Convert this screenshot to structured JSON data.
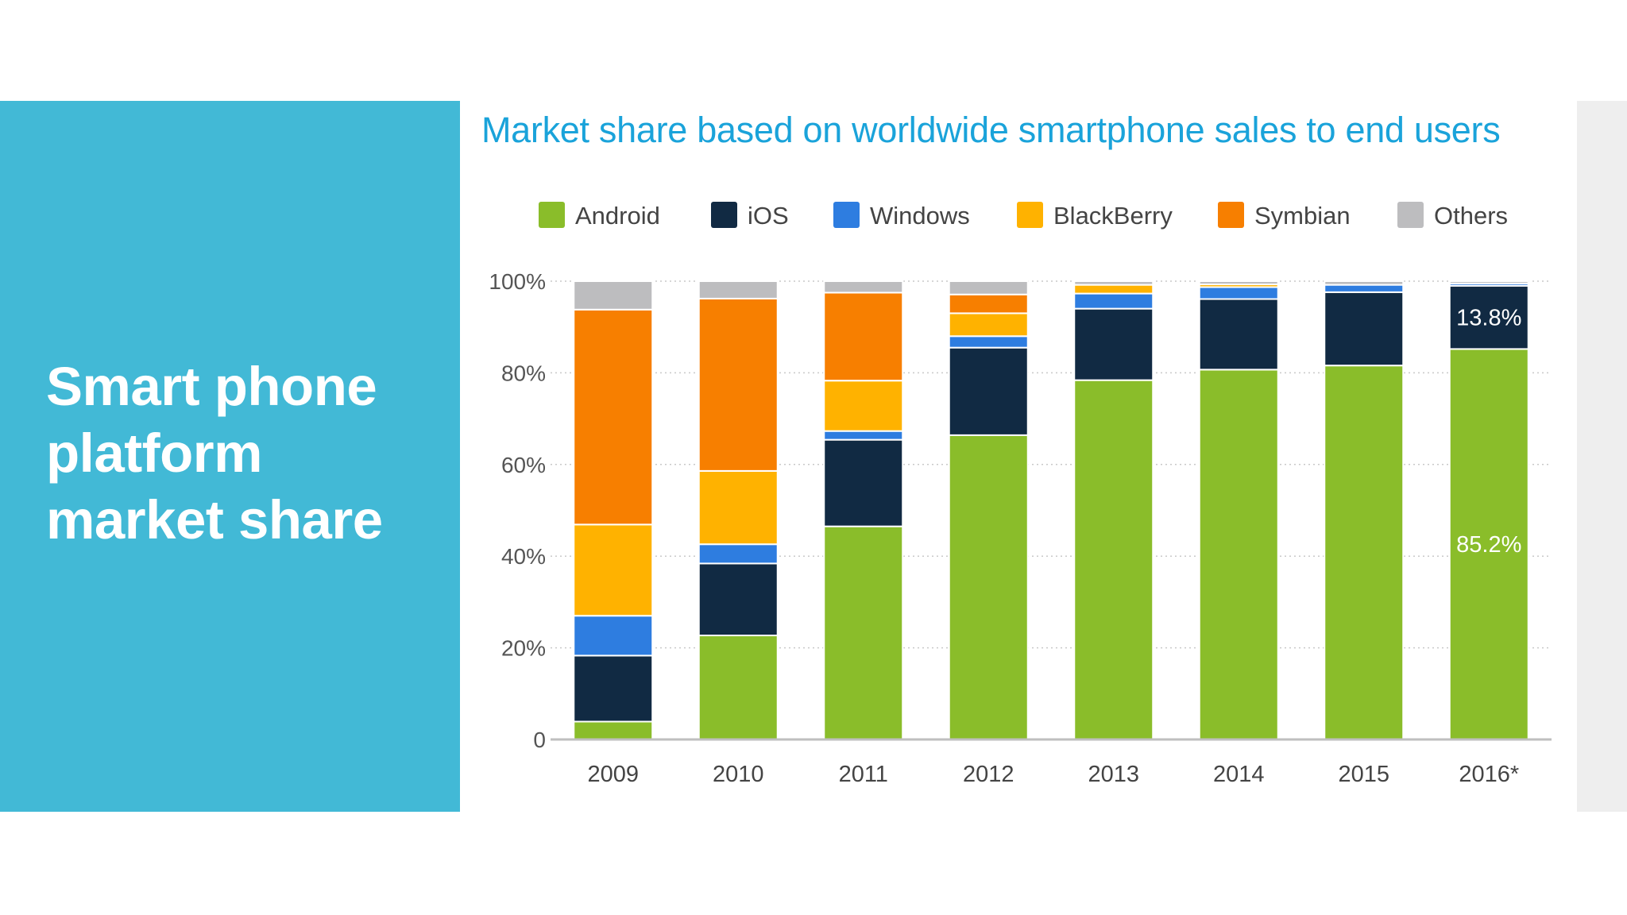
{
  "slide": {
    "title": "Smart phone platform market share"
  },
  "chart_data": {
    "type": "bar",
    "stacked": true,
    "title": "Market share based on worldwide smartphone sales to end users",
    "categories": [
      "2009",
      "2010",
      "2011",
      "2012",
      "2013",
      "2014",
      "2015",
      "2016*"
    ],
    "ylim": [
      0,
      100
    ],
    "yticks": [
      0,
      20,
      40,
      60,
      80,
      100
    ],
    "ytick_labels": [
      "0",
      "20%",
      "40%",
      "60%",
      "80%",
      "100%"
    ],
    "grid": true,
    "legend": "top",
    "series": [
      {
        "name": "Android",
        "color": "#8abd2a",
        "values": [
          3.9,
          22.7,
          46.5,
          66.4,
          78.4,
          80.7,
          81.6,
          85.2
        ]
      },
      {
        "name": "iOS",
        "color": "#112a43",
        "values": [
          14.4,
          15.7,
          18.9,
          19.1,
          15.6,
          15.4,
          16.0,
          13.8
        ]
      },
      {
        "name": "Windows",
        "color": "#2e7de0",
        "values": [
          8.7,
          4.2,
          1.9,
          2.5,
          3.3,
          2.6,
          1.6,
          0.5
        ]
      },
      {
        "name": "BlackBerry",
        "color": "#ffb200",
        "values": [
          19.9,
          16.0,
          11.0,
          5.0,
          1.9,
          0.6,
          0.0,
          0.0
        ]
      },
      {
        "name": "Symbian",
        "color": "#f77f00",
        "values": [
          46.9,
          37.6,
          19.2,
          4.1,
          0.0,
          0.0,
          0.0,
          0.0
        ]
      },
      {
        "name": "Others",
        "color": "#bdbdbf",
        "values": [
          6.2,
          3.8,
          2.5,
          2.9,
          0.8,
          0.7,
          0.8,
          0.5
        ]
      }
    ],
    "annotations": [
      {
        "category": "2016*",
        "series": "iOS",
        "text": "13.8%",
        "color": "#ffffff"
      },
      {
        "category": "2016*",
        "series": "Android",
        "text": "85.2%",
        "color": "#ffffff"
      }
    ]
  }
}
